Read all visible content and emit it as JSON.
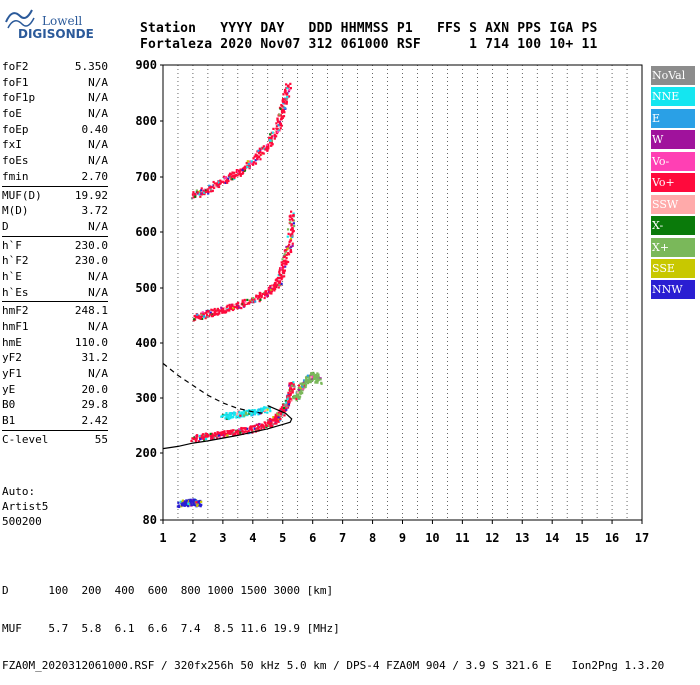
{
  "logo": {
    "line1": "Lowell",
    "line2": "DIGISONDE"
  },
  "header": {
    "columns": [
      "Station",
      "YYYY",
      "DAY",
      "DDD",
      "HHMMSS",
      "P1",
      "FFS",
      "S",
      "AXN",
      "PPS",
      "IGA",
      "PS"
    ],
    "values": [
      "Fortaleza",
      "2020",
      "Nov07",
      "312",
      "061000",
      "RSF",
      "",
      "1",
      "714",
      "100",
      "10+",
      "11"
    ]
  },
  "parameters": [
    [
      {
        "name": "foF2",
        "value": "5.350"
      },
      {
        "name": "foF1",
        "value": "N/A"
      },
      {
        "name": "foF1p",
        "value": "N/A"
      },
      {
        "name": "foE",
        "value": "N/A"
      },
      {
        "name": "foEp",
        "value": "0.40"
      },
      {
        "name": "fxI",
        "value": "N/A"
      },
      {
        "name": "foEs",
        "value": "N/A"
      },
      {
        "name": "fmin",
        "value": "2.70"
      }
    ],
    [
      {
        "name": "MUF(D)",
        "value": "19.92"
      },
      {
        "name": "M(D)",
        "value": "3.72"
      },
      {
        "name": "D",
        "value": "N/A"
      }
    ],
    [
      {
        "name": "h`F",
        "value": "230.0"
      },
      {
        "name": "h`F2",
        "value": "230.0"
      },
      {
        "name": "h`E",
        "value": "N/A"
      },
      {
        "name": "h`Es",
        "value": "N/A"
      }
    ],
    [
      {
        "name": "hmF2",
        "value": "248.1"
      },
      {
        "name": "hmF1",
        "value": "N/A"
      },
      {
        "name": "hmE",
        "value": "110.0"
      },
      {
        "name": "yF2",
        "value": "31.2"
      },
      {
        "name": "yF1",
        "value": "N/A"
      },
      {
        "name": "yE",
        "value": "20.0"
      },
      {
        "name": "B0",
        "value": "29.8"
      },
      {
        "name": "B1",
        "value": "2.42"
      }
    ],
    [
      {
        "name": "C-level",
        "value": "55"
      }
    ]
  ],
  "autoscaling": {
    "line1": "Auto:",
    "line2": "Artist5",
    "line3": "500200"
  },
  "legend": [
    {
      "label": "NoVal",
      "color": "#8c8c8c"
    },
    {
      "label": "NNE",
      "color": "#14e6f0"
    },
    {
      "label": "E",
      "color": "#2aa0e6"
    },
    {
      "label": "W",
      "color": "#a0129c"
    },
    {
      "label": "Vo-",
      "color": "#ff40b4"
    },
    {
      "label": "Vo+",
      "color": "#ff0a3c"
    },
    {
      "label": "SSW",
      "color": "#ffaaaa"
    },
    {
      "label": "X-",
      "color": "#0a7a0a"
    },
    {
      "label": "X+",
      "color": "#7ab85a"
    },
    {
      "label": "SSE",
      "color": "#c8c800"
    },
    {
      "label": "NNW",
      "color": "#2a1ed2"
    }
  ],
  "bottom": {
    "line1": "D      100  200  400  600  800 1000 1500 3000 [km]",
    "line2": "MUF    5.7  5.8  6.1  6.6  7.4  8.5 11.6 19.9 [MHz]",
    "line3": "FZA0M_2020312061000.RSF / 320fx256h 50 kHz 5.0 km / DPS-4 FZA0M 904 / 3.9 S 321.6 E   Ion2Png 1.3.20"
  },
  "chart_data": {
    "type": "scatter",
    "xlim": [
      1,
      17
    ],
    "ylim": [
      80,
      900
    ],
    "xticks": [
      "1",
      "2",
      "3",
      "4",
      "5",
      "6",
      "7",
      "8",
      "9",
      "10",
      "11",
      "12",
      "13",
      "14",
      "15",
      "16",
      "17"
    ],
    "yticks": [
      "80",
      "200",
      "300",
      "400",
      "500",
      "600",
      "700",
      "800",
      "900"
    ],
    "grid": "dotted vertical every 0.5 MHz",
    "series": [
      {
        "name": "O-trace (F2, 1st hop)",
        "color": "#ff0a3c",
        "points": [
          [
            2.0,
            228
          ],
          [
            2.5,
            232
          ],
          [
            3.0,
            236
          ],
          [
            3.5,
            240
          ],
          [
            4.0,
            246
          ],
          [
            4.5,
            255
          ],
          [
            4.8,
            265
          ],
          [
            5.0,
            280
          ],
          [
            5.2,
            300
          ],
          [
            5.3,
            330
          ]
        ]
      },
      {
        "name": "X-trace (F2, 1st hop)",
        "color": "#7ab85a",
        "points": [
          [
            5.4,
            300
          ],
          [
            5.6,
            320
          ],
          [
            5.8,
            335
          ],
          [
            6.0,
            345
          ],
          [
            6.2,
            330
          ]
        ]
      },
      {
        "name": "O-trace (F2, 2nd hop)",
        "color": "#ff0a3c",
        "points": [
          [
            2.0,
            448
          ],
          [
            2.5,
            455
          ],
          [
            3.0,
            462
          ],
          [
            3.5,
            470
          ],
          [
            4.0,
            480
          ],
          [
            4.5,
            495
          ],
          [
            4.8,
            510
          ],
          [
            5.0,
            540
          ],
          [
            5.2,
            580
          ],
          [
            5.3,
            640
          ]
        ]
      },
      {
        "name": "O-trace (F2, 3rd hop)",
        "color": "#ff0a3c",
        "points": [
          [
            2.0,
            668
          ],
          [
            2.5,
            680
          ],
          [
            3.0,
            695
          ],
          [
            3.5,
            710
          ],
          [
            4.0,
            730
          ],
          [
            4.5,
            760
          ],
          [
            4.8,
            790
          ],
          [
            5.0,
            830
          ],
          [
            5.2,
            870
          ]
        ]
      },
      {
        "name": "Es/low echoes",
        "color": "#14e6f0",
        "points": [
          [
            3.0,
            268
          ],
          [
            3.5,
            272
          ],
          [
            4.0,
            276
          ],
          [
            4.5,
            282
          ]
        ]
      },
      {
        "name": "Low-frequency echoes",
        "color": "#2a1ed2",
        "points": [
          [
            1.5,
            110
          ],
          [
            1.8,
            112
          ],
          [
            2.0,
            114
          ],
          [
            2.2,
            110
          ]
        ]
      }
    ],
    "profile_solid": [
      [
        1.0,
        208
      ],
      [
        1.5,
        212
      ],
      [
        2.0,
        218
      ],
      [
        2.5,
        222
      ],
      [
        3.0,
        227
      ],
      [
        3.5,
        232
      ],
      [
        4.0,
        238
      ],
      [
        4.5,
        244
      ],
      [
        5.0,
        252
      ],
      [
        5.25,
        256
      ],
      [
        5.3,
        262
      ],
      [
        5.1,
        272
      ],
      [
        4.8,
        279
      ],
      [
        4.5,
        286
      ]
    ],
    "profile_dashed": [
      [
        1.0,
        363
      ],
      [
        1.5,
        341
      ],
      [
        2.0,
        323
      ],
      [
        2.5,
        305
      ],
      [
        3.0,
        291
      ],
      [
        3.5,
        281
      ],
      [
        4.0,
        275
      ],
      [
        4.4,
        272
      ]
    ]
  }
}
